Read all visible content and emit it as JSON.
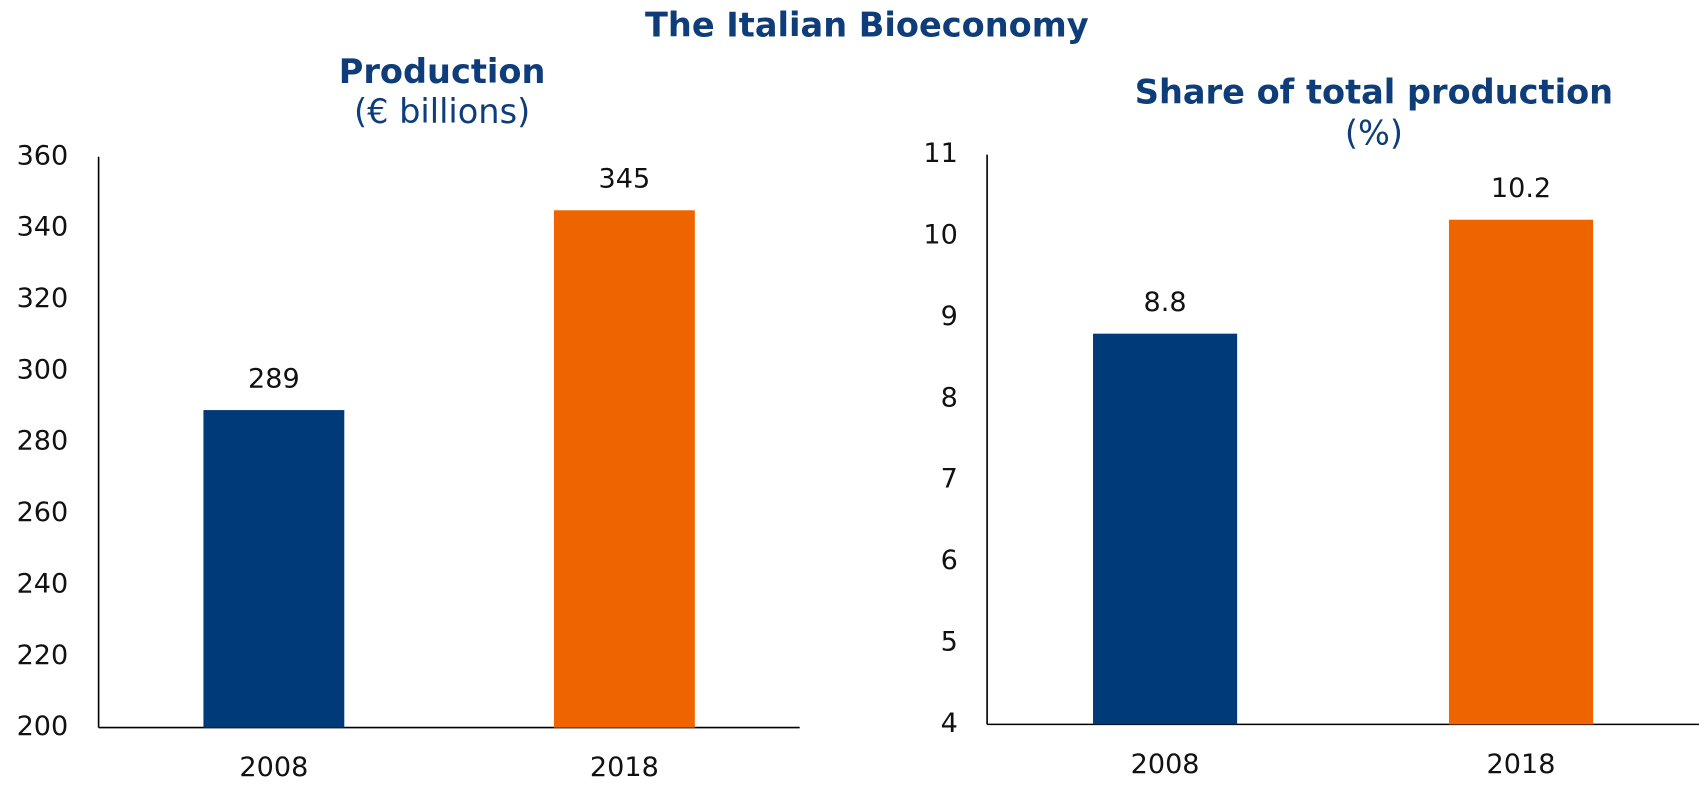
{
  "title": "The Italian Bioeconomy",
  "chart_data": [
    {
      "type": "bar",
      "title": "Production",
      "subtitle": "(€ billions)",
      "categories": [
        "2008",
        "2018"
      ],
      "values": [
        289,
        345
      ],
      "colors": [
        "#003a78",
        "#ee6500"
      ],
      "ylim": [
        200,
        360
      ],
      "yticks": [
        200,
        220,
        240,
        260,
        280,
        300,
        320,
        340,
        360
      ],
      "grid": false
    },
    {
      "type": "bar",
      "title": "Share of total production",
      "subtitle": "(%)",
      "categories": [
        "2008",
        "2018"
      ],
      "values": [
        8.8,
        10.2
      ],
      "colors": [
        "#003a78",
        "#ee6500"
      ],
      "ylim": [
        4,
        11
      ],
      "yticks": [
        4,
        5,
        6,
        7,
        8,
        9,
        10,
        11
      ],
      "grid": false
    }
  ]
}
